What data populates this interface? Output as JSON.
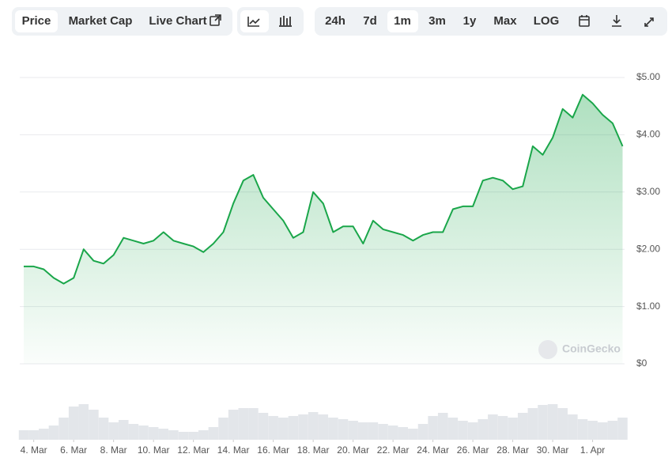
{
  "toolbar": {
    "tabs": [
      "Price",
      "Market Cap",
      "Live Chart"
    ],
    "ranges": [
      "24h",
      "7d",
      "1m",
      "3m",
      "1y",
      "Max",
      "LOG"
    ]
  },
  "watermark": "CoinGecko",
  "chart_data": {
    "type": "line",
    "x": [
      3.5,
      4,
      4.5,
      5,
      5.5,
      6,
      6.5,
      7,
      7.5,
      8,
      8.5,
      9,
      9.5,
      10,
      10.5,
      11,
      11.5,
      12,
      12.5,
      13,
      13.5,
      14,
      14.5,
      15,
      15.5,
      16,
      16.5,
      17,
      17.5,
      18,
      18.5,
      19,
      19.5,
      20,
      20.5,
      21,
      21.5,
      22,
      22.5,
      23,
      23.5,
      24,
      24.5,
      25,
      25.5,
      26,
      26.5,
      27,
      27.5,
      28,
      28.5,
      29,
      29.5,
      30,
      30.5,
      31,
      31.5,
      32,
      32.5,
      33,
      33.5
    ],
    "series": [
      {
        "color": "#1aa64a",
        "values": [
          1.7,
          1.7,
          1.65,
          1.5,
          1.4,
          1.5,
          2.0,
          1.8,
          1.75,
          1.9,
          2.2,
          2.15,
          2.1,
          2.15,
          2.3,
          2.15,
          2.1,
          2.05,
          1.95,
          2.1,
          2.3,
          2.8,
          3.2,
          3.3,
          2.9,
          2.7,
          2.5,
          2.2,
          2.3,
          3.0,
          2.8,
          2.3,
          2.4,
          2.4,
          2.1,
          2.5,
          2.35,
          2.3,
          2.25,
          2.15,
          2.25,
          2.3,
          2.3,
          2.7,
          2.75,
          2.75,
          3.2,
          3.25,
          3.2,
          3.05,
          3.1,
          3.8,
          3.65,
          3.95,
          4.45,
          4.3,
          4.7,
          4.55,
          4.35,
          4.2,
          3.8
        ]
      }
    ],
    "volume": {
      "color": "#e3e6ea",
      "values": [
        12,
        12,
        14,
        18,
        28,
        42,
        45,
        38,
        28,
        22,
        25,
        20,
        18,
        16,
        14,
        12,
        10,
        10,
        12,
        16,
        28,
        38,
        40,
        40,
        34,
        30,
        28,
        30,
        32,
        35,
        32,
        28,
        26,
        24,
        22,
        22,
        20,
        18,
        16,
        14,
        20,
        30,
        34,
        28,
        24,
        22,
        26,
        32,
        30,
        28,
        34,
        40,
        44,
        45,
        40,
        32,
        26,
        24,
        22,
        24,
        28
      ],
      "lim": [
        0,
        50
      ]
    },
    "xlim": [
      3.3,
      33.6
    ],
    "xticks": [
      {
        "value": 4,
        "label": "4. Mar"
      },
      {
        "value": 6,
        "label": "6. Mar"
      },
      {
        "value": 8,
        "label": "8. Mar"
      },
      {
        "value": 10,
        "label": "10. Mar"
      },
      {
        "value": 12,
        "label": "12. Mar"
      },
      {
        "value": 14,
        "label": "14. Mar"
      },
      {
        "value": 16,
        "label": "16. Mar"
      },
      {
        "value": 18,
        "label": "18. Mar"
      },
      {
        "value": 20,
        "label": "20. Mar"
      },
      {
        "value": 22,
        "label": "22. Mar"
      },
      {
        "value": 24,
        "label": "24. Mar"
      },
      {
        "value": 26,
        "label": "26. Mar"
      },
      {
        "value": 28,
        "label": "28. Mar"
      },
      {
        "value": 30,
        "label": "30. Mar"
      },
      {
        "value": 32,
        "label": "1. Apr"
      }
    ],
    "ylim": [
      0,
      5
    ],
    "yticks": [
      {
        "value": 0,
        "label": "$0"
      },
      {
        "value": 1,
        "label": "$1.00"
      },
      {
        "value": 2,
        "label": "$2.00"
      },
      {
        "value": 3,
        "label": "$3.00"
      },
      {
        "value": 4,
        "label": "$4.00"
      },
      {
        "value": 5,
        "label": "$5.00"
      }
    ],
    "grid": true
  }
}
